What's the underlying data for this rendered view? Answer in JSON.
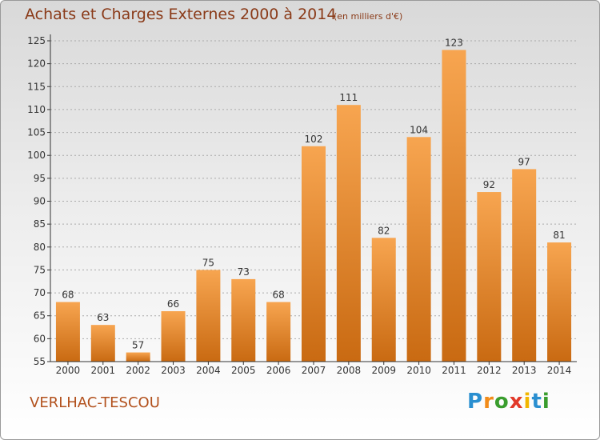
{
  "title": "Achats et Charges Externes 2000 à 2014",
  "subtitle": "(en milliers d'€)",
  "commune": "VERLHAC-TESCOU",
  "logo": {
    "letters": [
      "P",
      "r",
      "o",
      "x",
      "i",
      "t",
      "i"
    ],
    "colors": [
      "#2a8fd0",
      "#f28c1a",
      "#3a9d2e",
      "#e23a2a",
      "#f2b600",
      "#2a8fd0",
      "#3a9d2e"
    ]
  },
  "colors": {
    "bar_light": "#f7a550",
    "bar_dark": "#c96a12",
    "axis": "#333333",
    "grid": "#aaaaaa"
  },
  "chart_data": {
    "type": "bar",
    "categories": [
      "2000",
      "2001",
      "2002",
      "2003",
      "2004",
      "2005",
      "2006",
      "2007",
      "2008",
      "2009",
      "2010",
      "2011",
      "2012",
      "2013",
      "2014"
    ],
    "values": [
      68,
      63,
      57,
      66,
      75,
      73,
      68,
      102,
      111,
      82,
      104,
      123,
      92,
      97,
      81
    ],
    "data_labels": [
      "68",
      "63",
      "57",
      "66",
      "75",
      "73",
      "68",
      "102",
      "111",
      "82",
      "104",
      "123",
      "92",
      "97",
      "81"
    ],
    "yticks": [
      "55",
      "60",
      "65",
      "70",
      "75",
      "80",
      "85",
      "90",
      "95",
      "100",
      "105",
      "110",
      "115",
      "120",
      "125"
    ],
    "ylim": [
      55,
      125
    ],
    "grid": true
  }
}
